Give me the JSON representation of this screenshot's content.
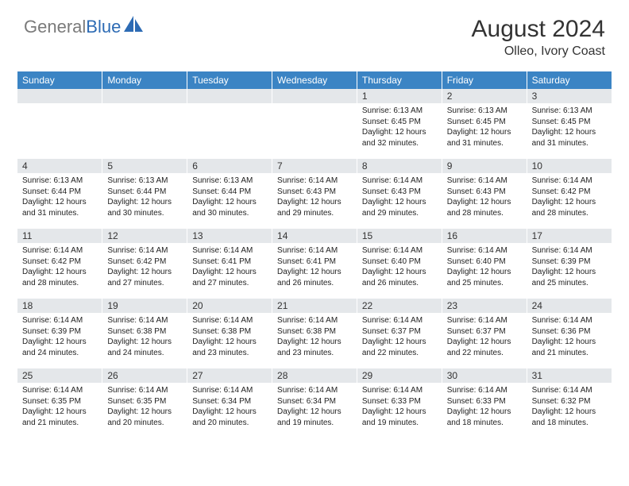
{
  "brand": {
    "gray": "General",
    "blue": "Blue"
  },
  "colors": {
    "header_bg": "#3b84c4",
    "header_text": "#ffffff",
    "daynum_bg": "#e4e7ea",
    "body_bg": "#ffffff",
    "text": "#222222",
    "logo_gray": "#7a7a7a",
    "logo_blue": "#2d6bb4"
  },
  "title": "August 2024",
  "location": "Olleo, Ivory Coast",
  "weekdays": [
    "Sunday",
    "Monday",
    "Tuesday",
    "Wednesday",
    "Thursday",
    "Friday",
    "Saturday"
  ],
  "weeks": [
    [
      null,
      null,
      null,
      null,
      {
        "n": "1",
        "sunrise": "6:13 AM",
        "sunset": "6:45 PM",
        "daylight": "12 hours and 32 minutes."
      },
      {
        "n": "2",
        "sunrise": "6:13 AM",
        "sunset": "6:45 PM",
        "daylight": "12 hours and 31 minutes."
      },
      {
        "n": "3",
        "sunrise": "6:13 AM",
        "sunset": "6:45 PM",
        "daylight": "12 hours and 31 minutes."
      }
    ],
    [
      {
        "n": "4",
        "sunrise": "6:13 AM",
        "sunset": "6:44 PM",
        "daylight": "12 hours and 31 minutes."
      },
      {
        "n": "5",
        "sunrise": "6:13 AM",
        "sunset": "6:44 PM",
        "daylight": "12 hours and 30 minutes."
      },
      {
        "n": "6",
        "sunrise": "6:13 AM",
        "sunset": "6:44 PM",
        "daylight": "12 hours and 30 minutes."
      },
      {
        "n": "7",
        "sunrise": "6:14 AM",
        "sunset": "6:43 PM",
        "daylight": "12 hours and 29 minutes."
      },
      {
        "n": "8",
        "sunrise": "6:14 AM",
        "sunset": "6:43 PM",
        "daylight": "12 hours and 29 minutes."
      },
      {
        "n": "9",
        "sunrise": "6:14 AM",
        "sunset": "6:43 PM",
        "daylight": "12 hours and 28 minutes."
      },
      {
        "n": "10",
        "sunrise": "6:14 AM",
        "sunset": "6:42 PM",
        "daylight": "12 hours and 28 minutes."
      }
    ],
    [
      {
        "n": "11",
        "sunrise": "6:14 AM",
        "sunset": "6:42 PM",
        "daylight": "12 hours and 28 minutes."
      },
      {
        "n": "12",
        "sunrise": "6:14 AM",
        "sunset": "6:42 PM",
        "daylight": "12 hours and 27 minutes."
      },
      {
        "n": "13",
        "sunrise": "6:14 AM",
        "sunset": "6:41 PM",
        "daylight": "12 hours and 27 minutes."
      },
      {
        "n": "14",
        "sunrise": "6:14 AM",
        "sunset": "6:41 PM",
        "daylight": "12 hours and 26 minutes."
      },
      {
        "n": "15",
        "sunrise": "6:14 AM",
        "sunset": "6:40 PM",
        "daylight": "12 hours and 26 minutes."
      },
      {
        "n": "16",
        "sunrise": "6:14 AM",
        "sunset": "6:40 PM",
        "daylight": "12 hours and 25 minutes."
      },
      {
        "n": "17",
        "sunrise": "6:14 AM",
        "sunset": "6:39 PM",
        "daylight": "12 hours and 25 minutes."
      }
    ],
    [
      {
        "n": "18",
        "sunrise": "6:14 AM",
        "sunset": "6:39 PM",
        "daylight": "12 hours and 24 minutes."
      },
      {
        "n": "19",
        "sunrise": "6:14 AM",
        "sunset": "6:38 PM",
        "daylight": "12 hours and 24 minutes."
      },
      {
        "n": "20",
        "sunrise": "6:14 AM",
        "sunset": "6:38 PM",
        "daylight": "12 hours and 23 minutes."
      },
      {
        "n": "21",
        "sunrise": "6:14 AM",
        "sunset": "6:38 PM",
        "daylight": "12 hours and 23 minutes."
      },
      {
        "n": "22",
        "sunrise": "6:14 AM",
        "sunset": "6:37 PM",
        "daylight": "12 hours and 22 minutes."
      },
      {
        "n": "23",
        "sunrise": "6:14 AM",
        "sunset": "6:37 PM",
        "daylight": "12 hours and 22 minutes."
      },
      {
        "n": "24",
        "sunrise": "6:14 AM",
        "sunset": "6:36 PM",
        "daylight": "12 hours and 21 minutes."
      }
    ],
    [
      {
        "n": "25",
        "sunrise": "6:14 AM",
        "sunset": "6:35 PM",
        "daylight": "12 hours and 21 minutes."
      },
      {
        "n": "26",
        "sunrise": "6:14 AM",
        "sunset": "6:35 PM",
        "daylight": "12 hours and 20 minutes."
      },
      {
        "n": "27",
        "sunrise": "6:14 AM",
        "sunset": "6:34 PM",
        "daylight": "12 hours and 20 minutes."
      },
      {
        "n": "28",
        "sunrise": "6:14 AM",
        "sunset": "6:34 PM",
        "daylight": "12 hours and 19 minutes."
      },
      {
        "n": "29",
        "sunrise": "6:14 AM",
        "sunset": "6:33 PM",
        "daylight": "12 hours and 19 minutes."
      },
      {
        "n": "30",
        "sunrise": "6:14 AM",
        "sunset": "6:33 PM",
        "daylight": "12 hours and 18 minutes."
      },
      {
        "n": "31",
        "sunrise": "6:14 AM",
        "sunset": "6:32 PM",
        "daylight": "12 hours and 18 minutes."
      }
    ]
  ],
  "labels": {
    "sunrise": "Sunrise:",
    "sunset": "Sunset:",
    "daylight": "Daylight:"
  }
}
